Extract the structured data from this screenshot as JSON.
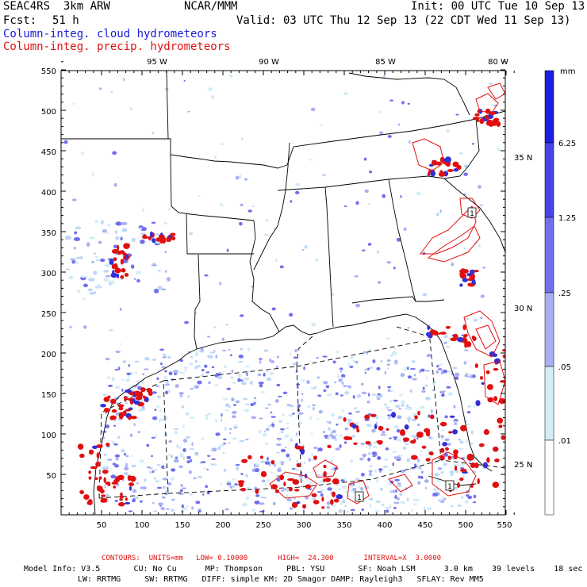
{
  "header": {
    "model": "SEAC4RS  3km ARW",
    "org": "NCAR/MMM",
    "init": "Init: 00 UTC Tue 10 Sep 13",
    "fcst_label": "Fcst:",
    "fcst_value": "51 h",
    "valid": "Valid: 03 UTC Thu 12 Sep 13 (22 CDT Wed 11 Sep 13)",
    "field_cloud": "Column-integ. cloud hydrometeors",
    "field_precip": "Column-integ. precip. hydrometeors"
  },
  "map": {
    "lon_labels": [
      "95 W",
      "90 W",
      "85 W",
      "80 W"
    ],
    "lat_labels": [
      "35 N",
      "30 N",
      "25 N"
    ],
    "x_ticks": [
      "50",
      "100",
      "150",
      "200",
      "250",
      "300",
      "350",
      "400",
      "450",
      "500",
      "550"
    ],
    "y_ticks": [
      "550",
      "500",
      "450",
      "400",
      "350",
      "300",
      "250",
      "200",
      "150",
      "100",
      "50"
    ],
    "contour_labels": [
      "1",
      "1",
      "1"
    ]
  },
  "legend": {
    "units": "mm",
    "levels": [
      "6.25",
      "1.25",
      ".25",
      ".05",
      ".01"
    ],
    "colors": [
      "#1e1ee0",
      "#4646e8",
      "#7070ee",
      "#a8b0f4",
      "#d2ecf8",
      "#ffffff"
    ]
  },
  "footer": {
    "contours": "CONTOURS:  UNITS=mm   LOW= 0.10000       HIGH=  24.300       INTERVAL=X  3.0000",
    "model_info_1": "Model Info: V3.5       CU: No Cu      MP: Thompson     PBL: YSU       SF: Noah LSM      3.0 km    39 levels    18 sec",
    "model_info_2": "LW: RRTMG     SW: RRTMG   DIFF: simple KM: 2D Smagor DAMP: Rayleigh3   SFLAY: Rev MM5"
  },
  "colors": {
    "cloud": "#6a6aee",
    "precip": "#e01010",
    "border": "#000000"
  }
}
